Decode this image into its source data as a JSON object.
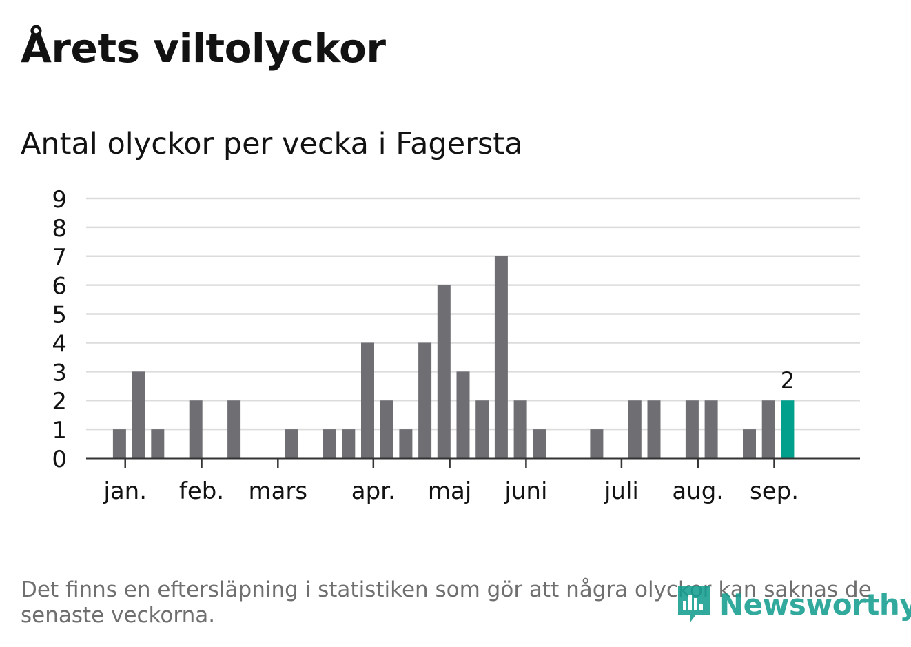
{
  "title": "Årets viltolyckor",
  "subtitle": "Antal olyckor per vecka i Fagersta",
  "footnote": "Det finns en eftersläpning i statistiken som gör att några olyckor kan saknas de senaste veckorna.",
  "logo": {
    "text": "Newsworthy",
    "icon": "bar-chart-speech-bubble-icon"
  },
  "colors": {
    "bar": "#6f6e73",
    "highlight": "#00a08c",
    "grid": "#dcdcdc",
    "axis": "#333333",
    "text": "#121212",
    "muted": "#6f6f6f"
  },
  "chart_data": {
    "type": "bar",
    "ylim": [
      0,
      9
    ],
    "yticks": [
      "0",
      "1",
      "2",
      "3",
      "4",
      "5",
      "6",
      "7",
      "8",
      "9"
    ],
    "grid": true,
    "weeks": [
      1,
      2,
      3,
      4,
      5,
      6,
      7,
      8,
      9,
      10,
      11,
      12,
      13,
      14,
      15,
      16,
      17,
      18,
      19,
      20,
      21,
      22,
      23,
      24,
      25,
      26,
      27,
      28,
      29,
      30,
      31,
      32,
      33,
      34,
      35,
      36,
      37,
      38
    ],
    "values": [
      0,
      0,
      1,
      3,
      1,
      0,
      2,
      0,
      2,
      0,
      0,
      1,
      0,
      1,
      1,
      4,
      2,
      1,
      4,
      6,
      3,
      2,
      7,
      2,
      1,
      0,
      0,
      1,
      0,
      2,
      2,
      0,
      2,
      2,
      0,
      1,
      2,
      2
    ],
    "month_labels": [
      {
        "label": "jan.",
        "week": 3.3
      },
      {
        "label": "feb.",
        "week": 7.3
      },
      {
        "label": "mars",
        "week": 11.3
      },
      {
        "label": "apr.",
        "week": 16.3
      },
      {
        "label": "maj",
        "week": 20.3
      },
      {
        "label": "juni",
        "week": 24.3
      },
      {
        "label": "juli",
        "week": 29.3
      },
      {
        "label": "aug.",
        "week": 33.3
      },
      {
        "label": "sep.",
        "week": 37.3
      }
    ],
    "highlight_index": 37,
    "highlight_label": "2"
  }
}
